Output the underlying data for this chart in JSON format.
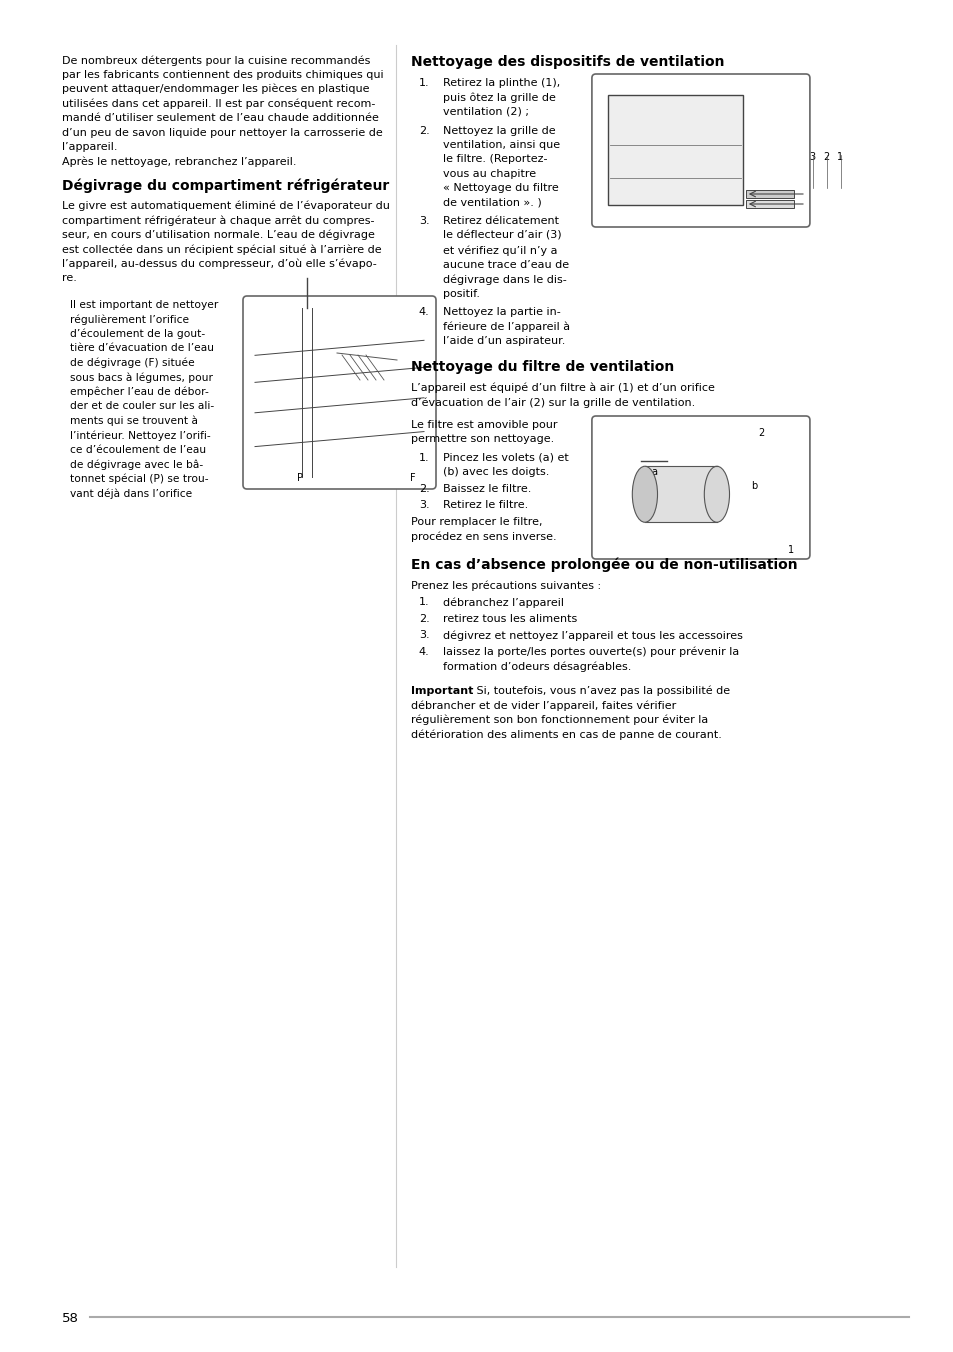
{
  "page_number": "58",
  "bg_color": "#ffffff",
  "fig_w": 9.54,
  "fig_h": 13.52,
  "dpi": 100,
  "col_div": 0.415,
  "intro_text_lines": [
    "De nombreux détergents pour la cuisine recommandés",
    "par les fabricants contiennent des produits chimiques qui",
    "peuvent attaquer/endommager les pièces en plastique",
    "utilisées dans cet appareil. Il est par conséquent recom-",
    "mandé d’utiliser seulement de l’eau chaude additionnée",
    "d’un peu de savon liquide pour nettoyer la carrosserie de",
    "l’appareil.",
    "Après le nettoyage, rebranchez l’appareil."
  ],
  "s1_title": "Dégivrage du compartiment réfrigérateur",
  "s1_body_lines": [
    "Le givre est automatiquement éliminé de l’évaporateur du",
    "compartiment réfrigérateur à chaque arrêt du compres-",
    "seur, en cours d’utilisation normale. L’eau de dégivrage",
    "est collectée dans un récipient spécial situé à l’arrière de",
    "l’appareil, au-dessus du compresseur, d’où elle s’évapo-",
    "re."
  ],
  "s1_box_lines": [
    "Il est important de nettoyer",
    "régulièrement l’orifice",
    "d’écoulement de la gout-",
    "tière d’évacuation de l’eau",
    "de dégivrage (F) située",
    "sous bacs à légumes, pour",
    "empêcher l’eau de débor-",
    "der et de couler sur les ali-",
    "ments qui se trouvent à",
    "l’intérieur. Nettoyez l’orifi-",
    "ce d’écoulement de l’eau",
    "de dégivrage avec le bâ-",
    "tonnet spécial (P) se trou-",
    "vant déjà dans l’orifice"
  ],
  "s2_title": "Nettoyage des dispositifs de ventilation",
  "s2_items": [
    [
      "Retirez la plinthe (1),",
      "puis ôtez la grille de",
      "ventilation (2) ;"
    ],
    [
      "Nettoyez la grille de",
      "ventilation, ainsi que",
      "le filtre. (Reportez-",
      "vous au chapitre",
      "« Nettoyage du filtre",
      "de ventilation ». )"
    ],
    [
      "Retirez délicatement",
      "le déflecteur d’air (3)",
      "et vérifiez qu’il n’y a",
      "aucune trace d’eau de",
      "dégivrage dans le dis-",
      "positif."
    ],
    [
      "Nettoyez la partie in-",
      "férieure de l’appareil à",
      "l’aide d’un aspirateur."
    ]
  ],
  "s3_title": "Nettoyage du filtre de ventilation",
  "s3_intro_lines": [
    "L’appareil est équipé d’un filtre à air (1) et d’un orifice",
    "d’évacuation de l’air (2) sur la grille de ventilation."
  ],
  "s3_box_lines": [
    "Le filtre est amovible pour",
    "permettre son nettoyage."
  ],
  "s3_items": [
    [
      "Pincez les volets (a) et",
      "(b) avec les doigts."
    ],
    [
      "Baissez le filtre."
    ],
    [
      "Retirez le filtre."
    ]
  ],
  "s3_after_lines": [
    "Pour remplacer le filtre,",
    "procédez en sens inverse."
  ],
  "s4_title": "En cas d’absence prolongée ou de non-utilisation",
  "s4_intro": "Prenez les précautions suivantes :",
  "s4_items": [
    [
      "débranchez l’appareil"
    ],
    [
      "retirez tous les aliments"
    ],
    [
      "dégivrez et nettoyez l’appareil et tous les accessoires"
    ],
    [
      "laissez la porte/les portes ouverte(s) pour prévenir la",
      "formation d’odeurs désagréables."
    ]
  ],
  "s4_important_bold": "Important",
  "s4_important_rest_lines": [
    " Si, toutefois, vous n’avez pas la possibilité de",
    "débrancher et de vider l’appareil, faites vérifier",
    "régulièrement son bon fonctionnement pour éviter la",
    "détérioration des aliments en cas de panne de courant."
  ]
}
